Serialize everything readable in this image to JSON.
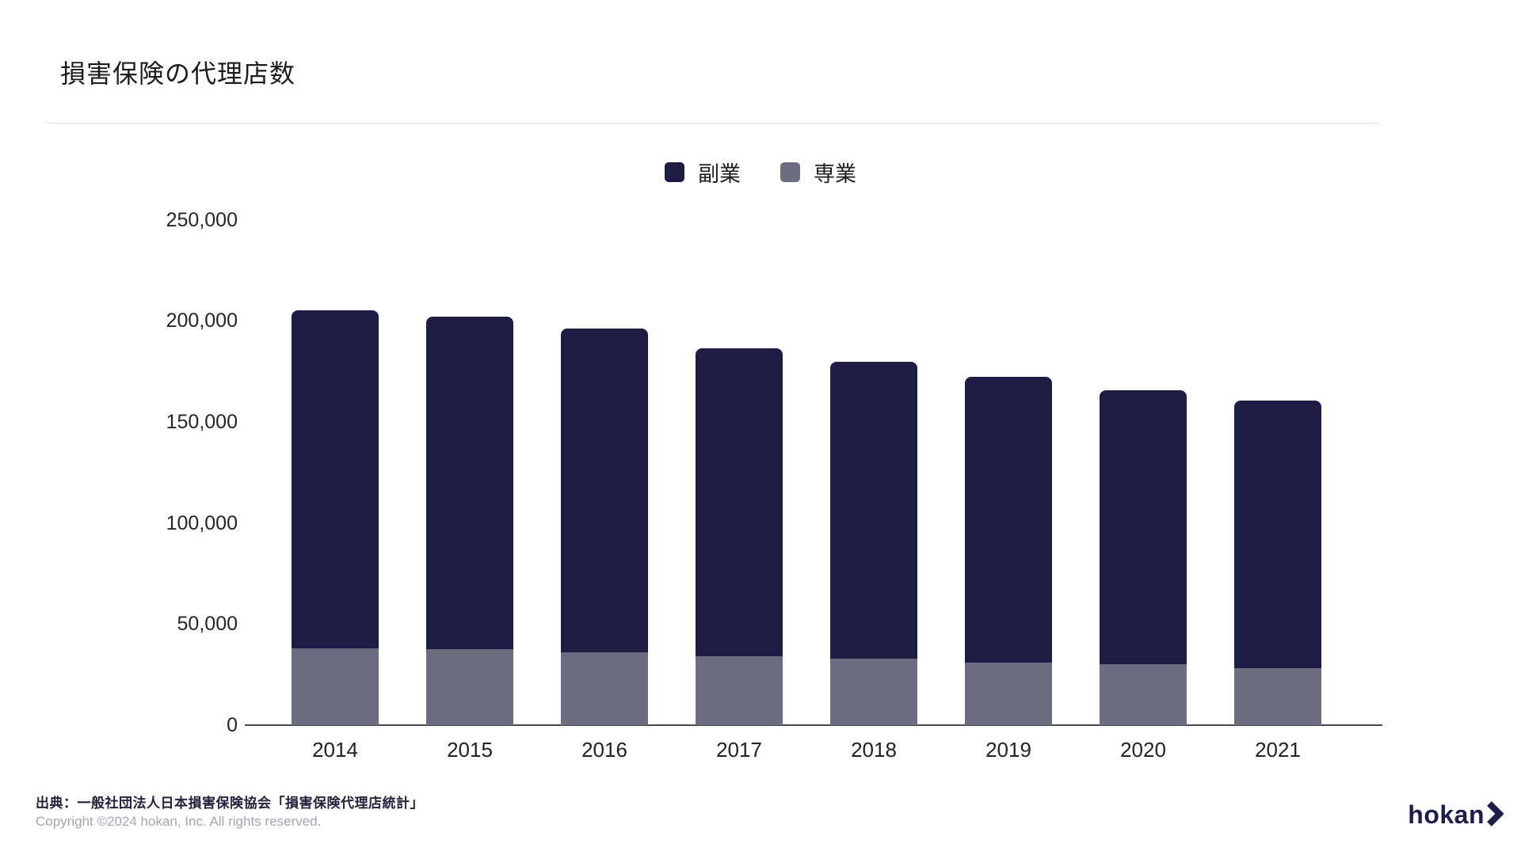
{
  "page": {
    "title": "損害保険の代理店数",
    "source": "出典：一般社団法人日本損害保険協会「損害保険代理店統計」",
    "copyright": "Copyright ©2024 hokan, Inc. All rights reserved.",
    "logo_text": "hokan"
  },
  "colors": {
    "fukugyo": "#1c1c44",
    "sengyo": "#6d6d82",
    "axis_line": "#46464e",
    "title_text": "#1c1c1c",
    "tick_text": "#262626",
    "source_text": "#23233f",
    "copyright_text": "#a5a5ae",
    "logo": "#1d1d4b",
    "divider": "#e4e4e4"
  },
  "chart_data": {
    "type": "bar",
    "stacked": true,
    "title": "損害保険の代理店数",
    "categories": [
      "2014",
      "2015",
      "2016",
      "2017",
      "2018",
      "2019",
      "2020",
      "2021"
    ],
    "series": [
      {
        "name": "副業",
        "key": "fukugyo",
        "color": "#1c1c44",
        "stack": "top",
        "values": [
          167000,
          164500,
          160000,
          152500,
          147000,
          141500,
          135500,
          132500
        ]
      },
      {
        "name": "専業",
        "key": "sengyo",
        "color": "#6d6d82",
        "stack": "bottom",
        "values": [
          38000,
          37500,
          36000,
          34000,
          33000,
          31000,
          30000,
          28000
        ]
      }
    ],
    "totals": [
      205000,
      202000,
      196000,
      186500,
      180000,
      172500,
      165500,
      160500
    ],
    "legend": [
      {
        "label": "副業",
        "color": "#1c1c44"
      },
      {
        "label": "専業",
        "color": "#6d6d82"
      }
    ],
    "yticks": [
      "0",
      "50,000",
      "100,000",
      "150,000",
      "200,000",
      "250,000"
    ],
    "ylim": [
      0,
      250000
    ],
    "grid": false,
    "legend_position": "top-center",
    "xlabel": "",
    "ylabel": ""
  }
}
